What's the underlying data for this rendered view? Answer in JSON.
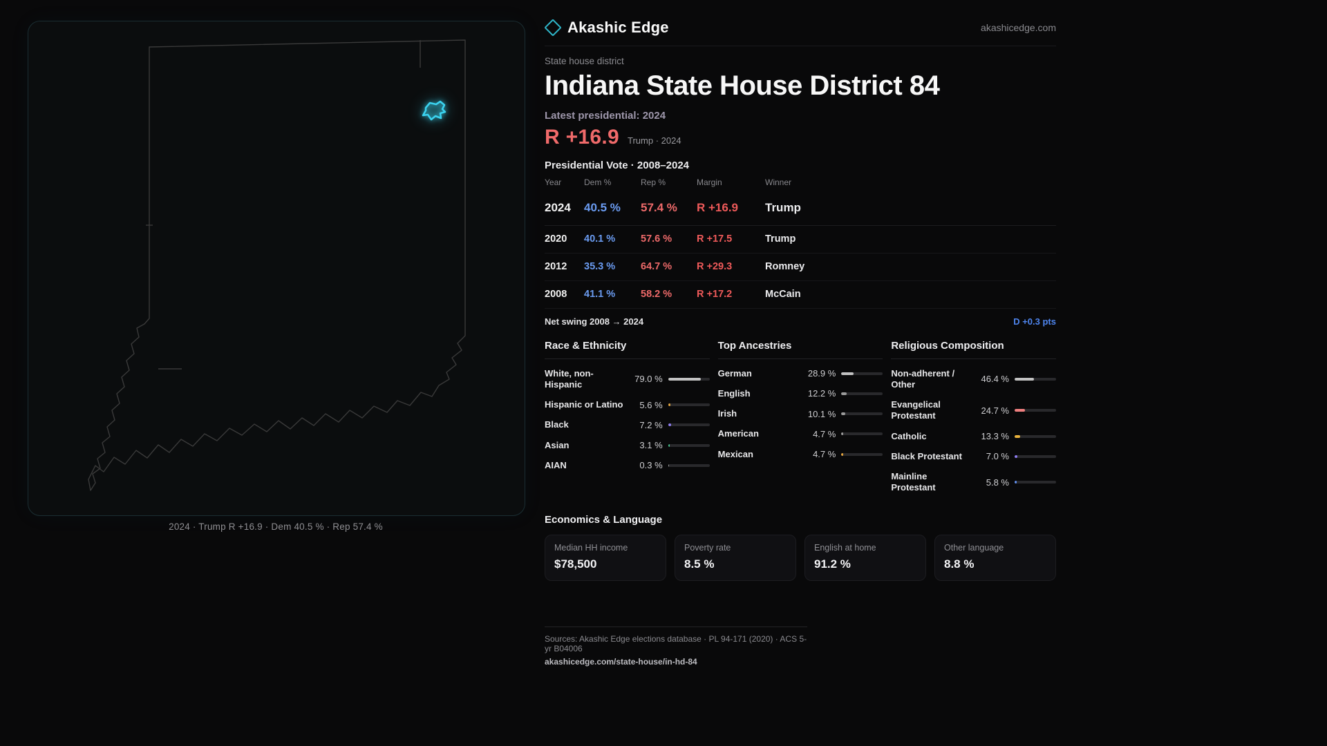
{
  "brand": {
    "name": "Akashic Edge",
    "domain": "akashicedge.com",
    "logo_color": "#2fb6c9"
  },
  "map_panel": {
    "state_name": "Indiana",
    "outline_color": "#3a3a3a",
    "district_color": "#3bd3f0",
    "caption": "2024 · Trump R +16.9 · Dem 40.5 % · Rep 57.4 %"
  },
  "header": {
    "kicker": "State house district",
    "title": "Indiana State House District 84",
    "latest_label": "Latest presidential: 2024",
    "headline_margin": "R +16.9",
    "headline_sub": "Trump · 2024",
    "margin_color": "#f06a6a",
    "dem_color": "#6b9cf2",
    "rep_color": "#ee6a6a"
  },
  "vote_table": {
    "title": "Presidential Vote · 2008–2024",
    "columns": {
      "year": "Year",
      "dem": "Dem %",
      "rep": "Rep %",
      "margin": "Margin",
      "winner": "Winner"
    },
    "rows": [
      {
        "year": "2024",
        "dem": "40.5 %",
        "rep": "57.4 %",
        "margin": "R +16.9",
        "winner": "Trump"
      },
      {
        "year": "2020",
        "dem": "40.1 %",
        "rep": "57.6 %",
        "margin": "R +17.5",
        "winner": "Trump"
      },
      {
        "year": "2012",
        "dem": "35.3 %",
        "rep": "64.7 %",
        "margin": "R +29.3",
        "winner": "Romney"
      },
      {
        "year": "2008",
        "dem": "41.1 %",
        "rep": "58.2 %",
        "margin": "R +17.2",
        "winner": "McCain"
      }
    ],
    "net_swing_label": "Net swing 2008 → 2024",
    "net_swing_value": "D +0.3 pts",
    "net_swing_color": "#4f86f0"
  },
  "demographics": {
    "race": {
      "title": "Race & Ethnicity",
      "items": [
        {
          "label": "White, non-Hispanic",
          "value": "79.0 %",
          "pct": 79.0,
          "color": "#c2c2c2"
        },
        {
          "label": "Hispanic or Latino",
          "value": "5.6 %",
          "pct": 5.6,
          "color": "#e2a33c"
        },
        {
          "label": "Black",
          "value": "7.2 %",
          "pct": 7.2,
          "color": "#8e7df2"
        },
        {
          "label": "Asian",
          "value": "3.1 %",
          "pct": 3.1,
          "color": "#43c08a"
        },
        {
          "label": "AIAN",
          "value": "0.3 %",
          "pct": 0.3,
          "color": "#9a9a9a"
        }
      ]
    },
    "ancestry": {
      "title": "Top Ancestries",
      "items": [
        {
          "label": "German",
          "value": "28.9 %",
          "pct": 28.9,
          "color": "#c2c2c2"
        },
        {
          "label": "English",
          "value": "12.2 %",
          "pct": 12.2,
          "color": "#9b9b9b"
        },
        {
          "label": "Irish",
          "value": "10.1 %",
          "pct": 10.1,
          "color": "#9b9b9b"
        },
        {
          "label": "American",
          "value": "4.7 %",
          "pct": 4.7,
          "color": "#9b9b9b"
        },
        {
          "label": "Mexican",
          "value": "4.7 %",
          "pct": 4.7,
          "color": "#e2a33c"
        }
      ]
    },
    "religion": {
      "title": "Religious Composition",
      "items": [
        {
          "label": "Non-adherent / Other",
          "value": "46.4 %",
          "pct": 46.4,
          "color": "#c2c2c2"
        },
        {
          "label": "Evangelical Protestant",
          "value": "24.7 %",
          "pct": 24.7,
          "color": "#ef7f7f"
        },
        {
          "label": "Catholic",
          "value": "13.3 %",
          "pct": 13.3,
          "color": "#e8b23c"
        },
        {
          "label": "Black Protestant",
          "value": "7.0 %",
          "pct": 7.0,
          "color": "#8e7df2"
        },
        {
          "label": "Mainline Protestant",
          "value": "5.8 %",
          "pct": 5.8,
          "color": "#5f8ff0"
        }
      ]
    }
  },
  "economics": {
    "title": "Economics & Language",
    "stats": [
      {
        "label": "Median HH income",
        "value": "$78,500"
      },
      {
        "label": "Poverty rate",
        "value": "8.5 %"
      },
      {
        "label": "English at home",
        "value": "91.2 %"
      },
      {
        "label": "Other language",
        "value": "8.8 %"
      }
    ]
  },
  "footer": {
    "sources": "Sources: Akashic Edge elections database · PL 94-171 (2020) · ACS 5-yr B04006",
    "permalink": "akashicedge.com/state-house/in-hd-84"
  },
  "chart_data": [
    {
      "type": "table",
      "title": "Presidential Vote · 2008–2024",
      "columns": [
        "Year",
        "Dem %",
        "Rep %",
        "Margin",
        "Winner"
      ],
      "rows": [
        [
          "2024",
          40.5,
          57.4,
          "R +16.9",
          "Trump"
        ],
        [
          "2020",
          40.1,
          57.6,
          "R +17.5",
          "Trump"
        ],
        [
          "2012",
          35.3,
          64.7,
          "R +29.3",
          "Romney"
        ],
        [
          "2008",
          41.1,
          58.2,
          "R +17.2",
          "McCain"
        ]
      ],
      "annotations": [
        "Net swing 2008 → 2024: D +0.3 pts",
        "Latest presidential: 2024 — R +16.9 (Trump)"
      ]
    },
    {
      "type": "bar",
      "title": "Race & Ethnicity",
      "categories": [
        "White, non-Hispanic",
        "Hispanic or Latino",
        "Black",
        "Asian",
        "AIAN"
      ],
      "values": [
        79.0,
        5.6,
        7.2,
        3.1,
        0.3
      ],
      "unit": "%",
      "xlim": [
        0,
        100
      ],
      "orientation": "horizontal"
    },
    {
      "type": "bar",
      "title": "Top Ancestries",
      "categories": [
        "German",
        "English",
        "Irish",
        "American",
        "Mexican"
      ],
      "values": [
        28.9,
        12.2,
        10.1,
        4.7,
        4.7
      ],
      "unit": "%",
      "xlim": [
        0,
        100
      ],
      "orientation": "horizontal"
    },
    {
      "type": "bar",
      "title": "Religious Composition",
      "categories": [
        "Non-adherent / Other",
        "Evangelical Protestant",
        "Catholic",
        "Black Protestant",
        "Mainline Protestant"
      ],
      "values": [
        46.4,
        24.7,
        13.3,
        7.0,
        5.8
      ],
      "unit": "%",
      "xlim": [
        0,
        100
      ],
      "orientation": "horizontal"
    },
    {
      "type": "table",
      "title": "Economics & Language",
      "columns": [
        "Median HH income",
        "Poverty rate",
        "English at home",
        "Other language"
      ],
      "rows": [
        [
          "$78,500",
          "8.5 %",
          "91.2 %",
          "8.8 %"
        ]
      ]
    }
  ]
}
